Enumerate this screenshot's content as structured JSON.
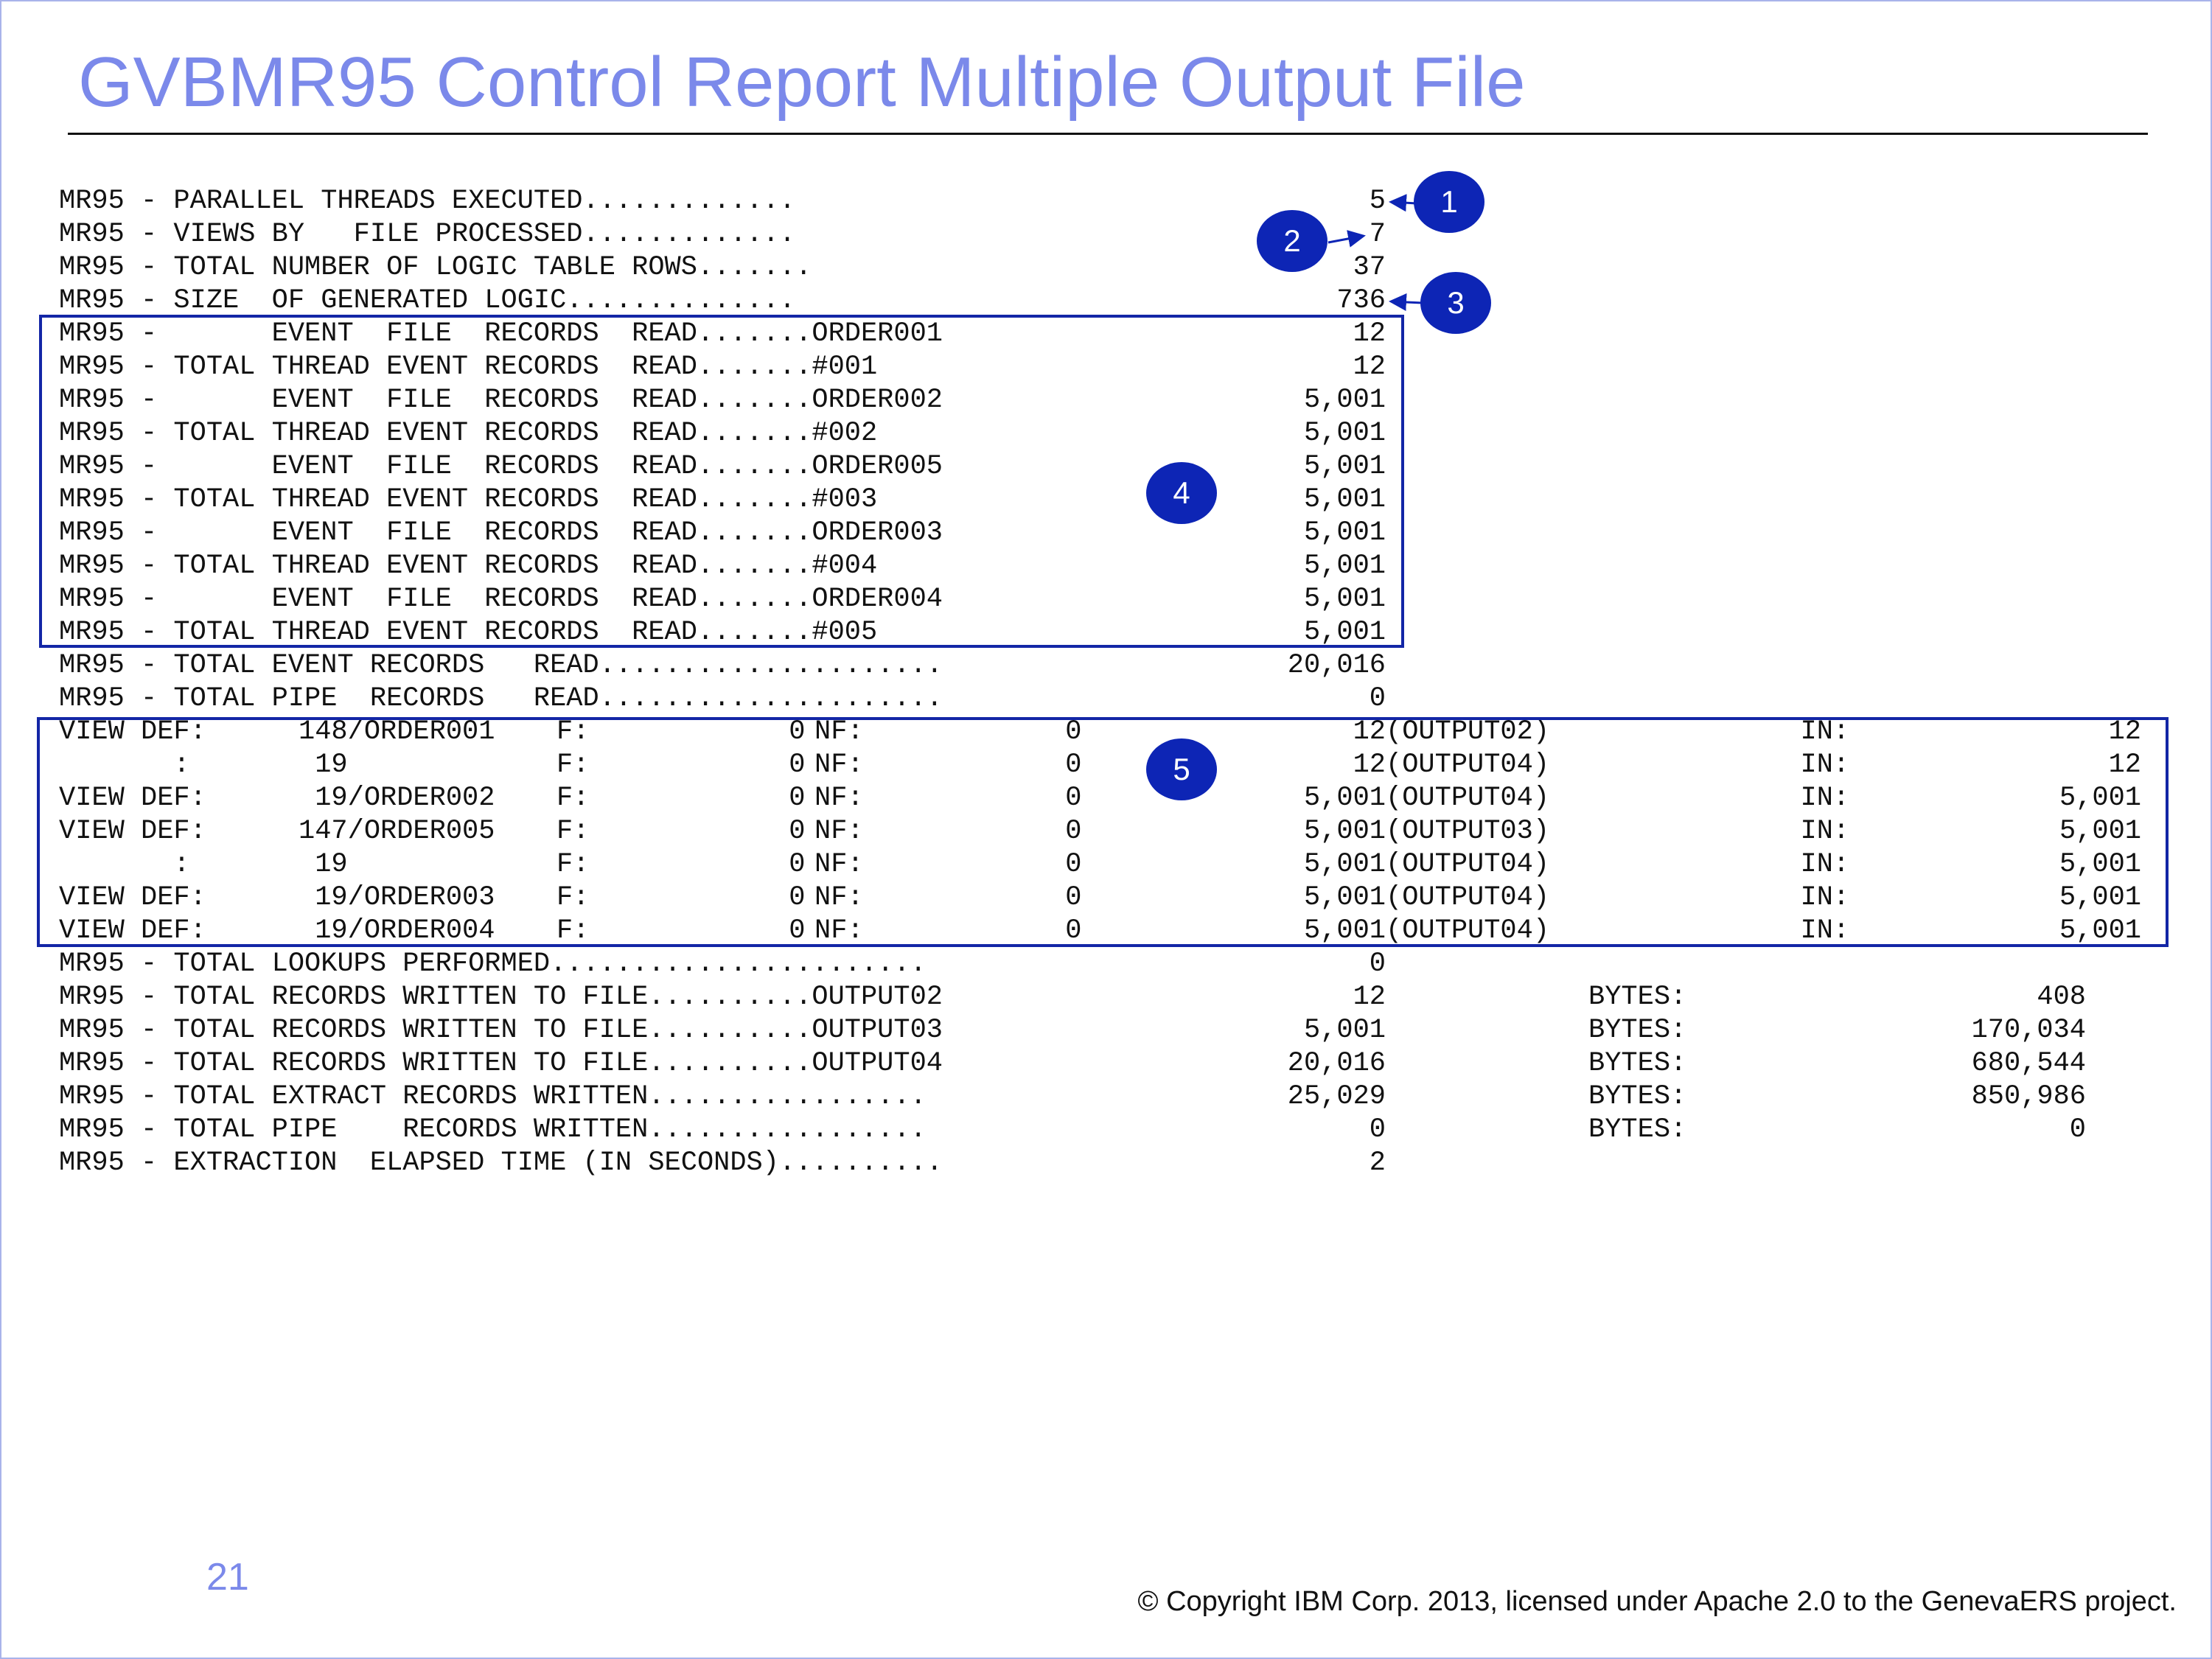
{
  "title": "GVBMR95 Control Report Multiple Output File",
  "page_number": "21",
  "copyright": "© Copyright IBM Corp. 2013, licensed under Apache 2.0 to the GenevaERS project.",
  "callouts": [
    "1",
    "2",
    "3",
    "4",
    "5"
  ],
  "report": {
    "summary": [
      {
        "label": "MR95 - PARALLEL THREADS EXECUTED.............",
        "value": "5"
      },
      {
        "label": "MR95 - VIEWS BY   FILE PROCESSED.............",
        "value": "7"
      },
      {
        "label": "MR95 - TOTAL NUMBER OF LOGIC TABLE ROWS.......",
        "value": "37"
      },
      {
        "label": "MR95 - SIZE  OF GENERATED LOGIC..............",
        "value": "736"
      }
    ],
    "event_reads": [
      {
        "label": "MR95 -       EVENT  FILE  RECORDS  READ.......ORDER001",
        "value": "12"
      },
      {
        "label": "MR95 - TOTAL THREAD EVENT RECORDS  READ.......#001",
        "value": "12"
      },
      {
        "label": "MR95 -       EVENT  FILE  RECORDS  READ.......ORDER002",
        "value": "5,001"
      },
      {
        "label": "MR95 - TOTAL THREAD EVENT RECORDS  READ.......#002",
        "value": "5,001"
      },
      {
        "label": "MR95 -       EVENT  FILE  RECORDS  READ.......ORDER005",
        "value": "5,001"
      },
      {
        "label": "MR95 - TOTAL THREAD EVENT RECORDS  READ.......#003",
        "value": "5,001"
      },
      {
        "label": "MR95 -       EVENT  FILE  RECORDS  READ.......ORDER003",
        "value": "5,001"
      },
      {
        "label": "MR95 - TOTAL THREAD EVENT RECORDS  READ.......#004",
        "value": "5,001"
      },
      {
        "label": "MR95 -       EVENT  FILE  RECORDS  READ.......ORDER004",
        "value": "5,001"
      },
      {
        "label": "MR95 - TOTAL THREAD EVENT RECORDS  READ.......#005",
        "value": "5,001"
      }
    ],
    "totals": [
      {
        "label": "MR95 - TOTAL EVENT RECORDS   READ.....................",
        "value": "20,016"
      },
      {
        "label": "MR95 - TOTAL PIPE  RECORDS   READ.....................",
        "value": "0"
      }
    ],
    "view_defs": [
      {
        "prefix": "VIEW DEF:",
        "view": "148/ORDER001",
        "f_label": "F:",
        "f": "0",
        "nf_label": "NF:",
        "nf": "0",
        "count": "12",
        "output": "(OUTPUT02)",
        "in_label": "IN:",
        "in": "12"
      },
      {
        "prefix": "       :",
        "view": " 19",
        "f_label": "F:",
        "f": "0",
        "nf_label": "NF:",
        "nf": "0",
        "count": "12",
        "output": "(OUTPUT04)",
        "in_label": "IN:",
        "in": "12"
      },
      {
        "prefix": "VIEW DEF:",
        "view": " 19/ORDER002",
        "f_label": "F:",
        "f": "0",
        "nf_label": "NF:",
        "nf": "0",
        "count": "5,001",
        "output": "(OUTPUT04)",
        "in_label": "IN:",
        "in": "5,001"
      },
      {
        "prefix": "VIEW DEF:",
        "view": "147/ORDER005",
        "f_label": "F:",
        "f": "0",
        "nf_label": "NF:",
        "nf": "0",
        "count": "5,001",
        "output": "(OUTPUT03)",
        "in_label": "IN:",
        "in": "5,001"
      },
      {
        "prefix": "       :",
        "view": " 19",
        "f_label": "F:",
        "f": "0",
        "nf_label": "NF:",
        "nf": "0",
        "count": "5,001",
        "output": "(OUTPUT04)",
        "in_label": "IN:",
        "in": "5,001"
      },
      {
        "prefix": "VIEW DEF:",
        "view": " 19/ORDER003",
        "f_label": "F:",
        "f": "0",
        "nf_label": "NF:",
        "nf": "0",
        "count": "5,001",
        "output": "(OUTPUT04)",
        "in_label": "IN:",
        "in": "5,001"
      },
      {
        "prefix": "VIEW DEF:",
        "view": " 19/ORDER004",
        "f_label": "F:",
        "f": "0",
        "nf_label": "NF:",
        "nf": "0",
        "count": "5,001",
        "output": "(OUTPUT04)",
        "in_label": "IN:",
        "in": "5,001"
      }
    ],
    "lookups": {
      "label": "MR95 - TOTAL LOOKUPS PERFORMED.......................",
      "value": "0"
    },
    "written": [
      {
        "label": "MR95 - TOTAL RECORDS WRITTEN TO FILE..........OUTPUT02",
        "value": "12",
        "bytes_label": "BYTES:",
        "bytes": "408"
      },
      {
        "label": "MR95 - TOTAL RECORDS WRITTEN TO FILE..........OUTPUT03",
        "value": "5,001",
        "bytes_label": "BYTES:",
        "bytes": "170,034"
      },
      {
        "label": "MR95 - TOTAL RECORDS WRITTEN TO FILE..........OUTPUT04",
        "value": "20,016",
        "bytes_label": "BYTES:",
        "bytes": "680,544"
      },
      {
        "label": "MR95 - TOTAL EXTRACT RECORDS WRITTEN.................",
        "value": "25,029",
        "bytes_label": "BYTES:",
        "bytes": "850,986"
      },
      {
        "label": "MR95 - TOTAL PIPE    RECORDS WRITTEN.................",
        "value": "0",
        "bytes_label": "BYTES:",
        "bytes": "0"
      }
    ],
    "elapsed": {
      "label": "MR95 - EXTRACTION  ELAPSED TIME (IN SECONDS)..........",
      "value": "2"
    }
  }
}
